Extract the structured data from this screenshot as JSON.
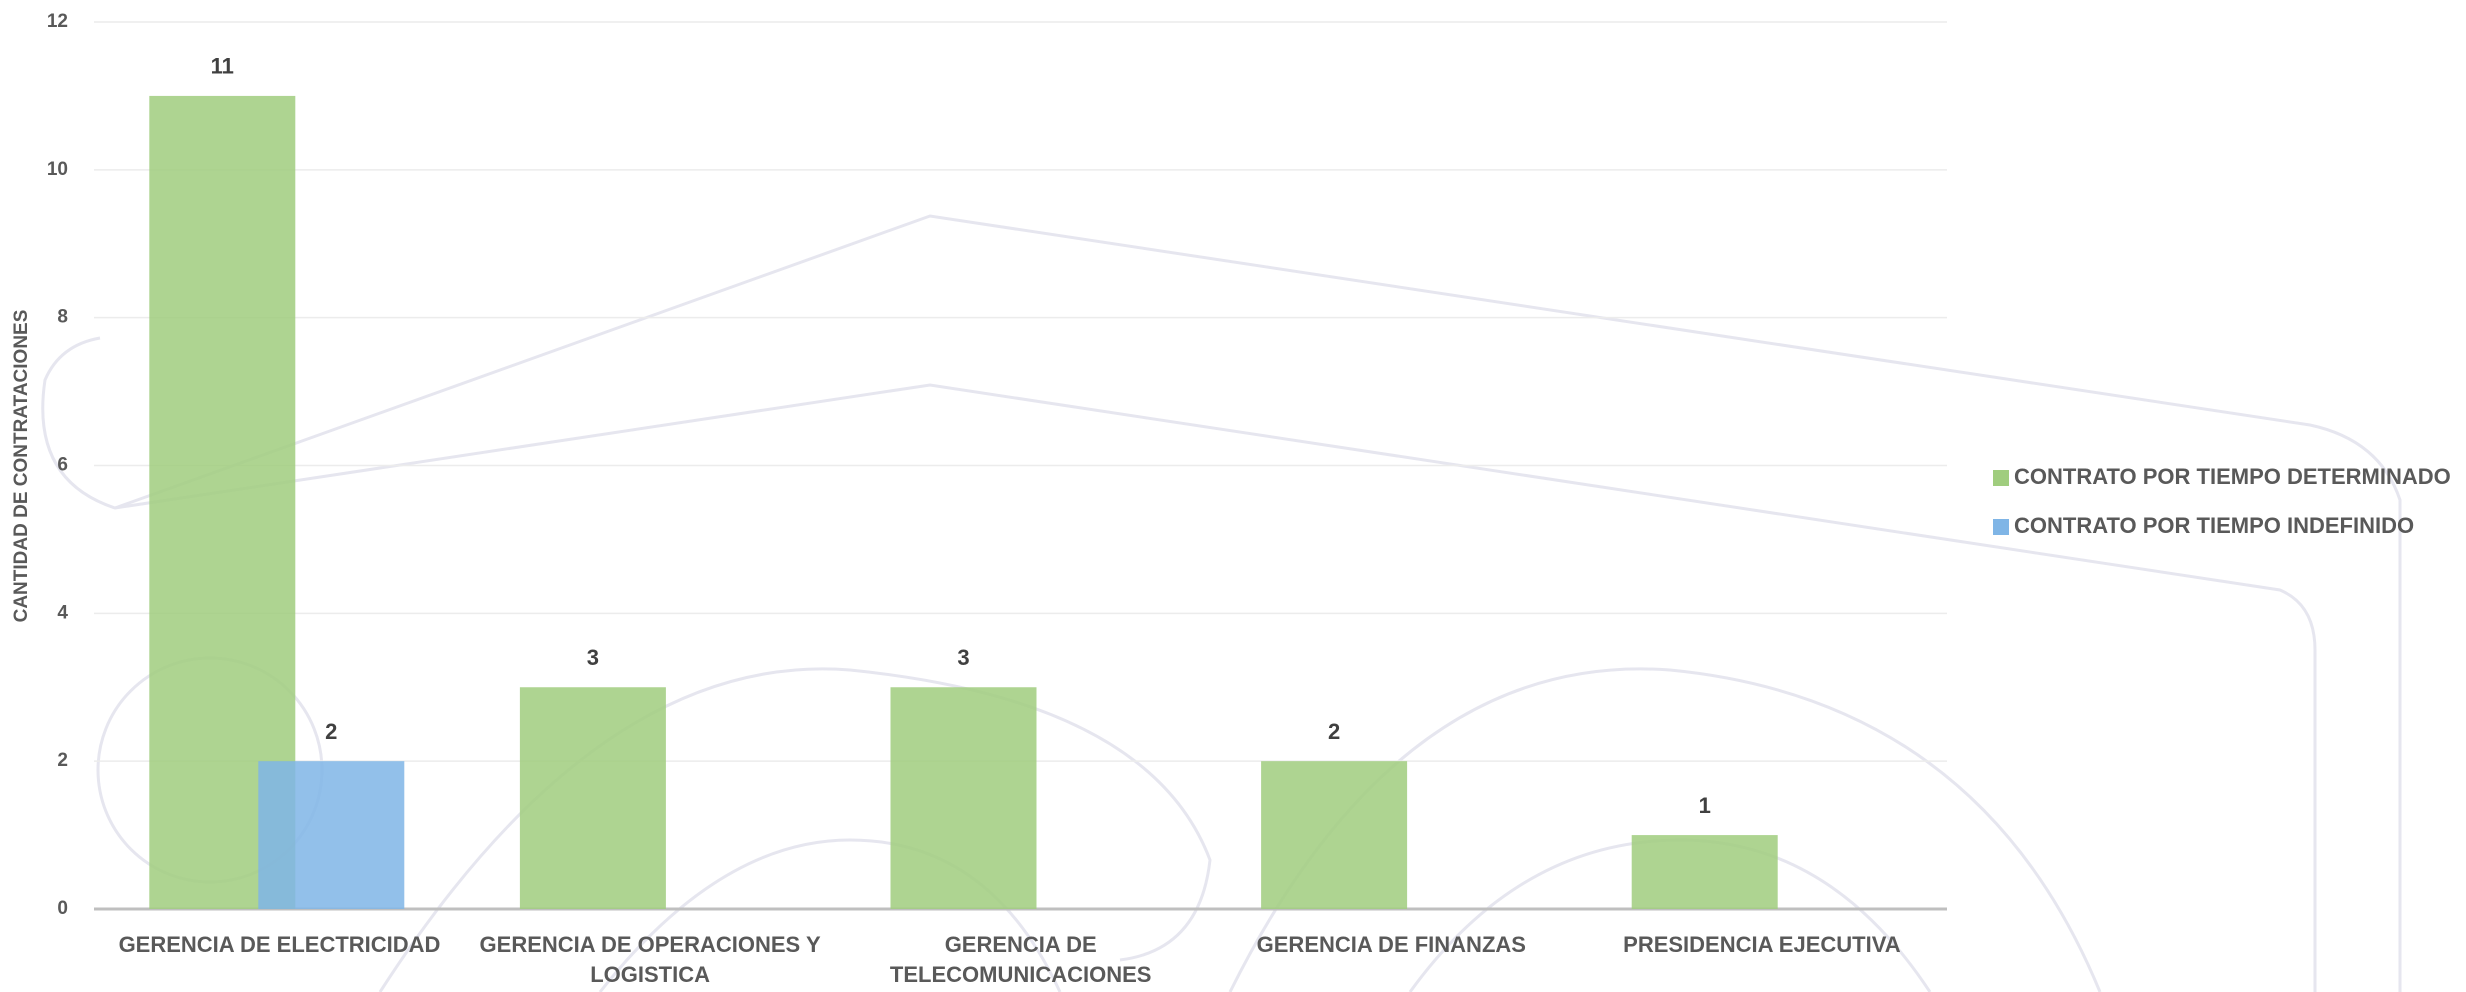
{
  "chart_data": {
    "type": "bar",
    "y_axis_label": "CANTIDAD DE CONTRATACIONES",
    "categories": [
      "GERENCIA DE ELECTRICIDAD",
      "GERENCIA DE OPERACIONES Y LOGISTICA",
      "GERENCIA DE TELECOMUNICACIONES",
      "GERENCIA DE FINANZAS",
      "PRESIDENCIA EJECUTIVA"
    ],
    "series": [
      {
        "name": "CONTRATO POR TIEMPO DETERMINADO",
        "color": "#a0cd7e",
        "values": [
          11,
          3,
          3,
          2,
          1
        ]
      },
      {
        "name": "CONTRATO POR TIEMPO INDEFINIDO",
        "color": "#7fb5e6",
        "values": [
          2,
          null,
          null,
          null,
          null
        ]
      }
    ],
    "ylim": [
      0,
      12
    ],
    "yticks": [
      0,
      2,
      4,
      6,
      8,
      10,
      12
    ],
    "grid": true,
    "legend": "right"
  }
}
